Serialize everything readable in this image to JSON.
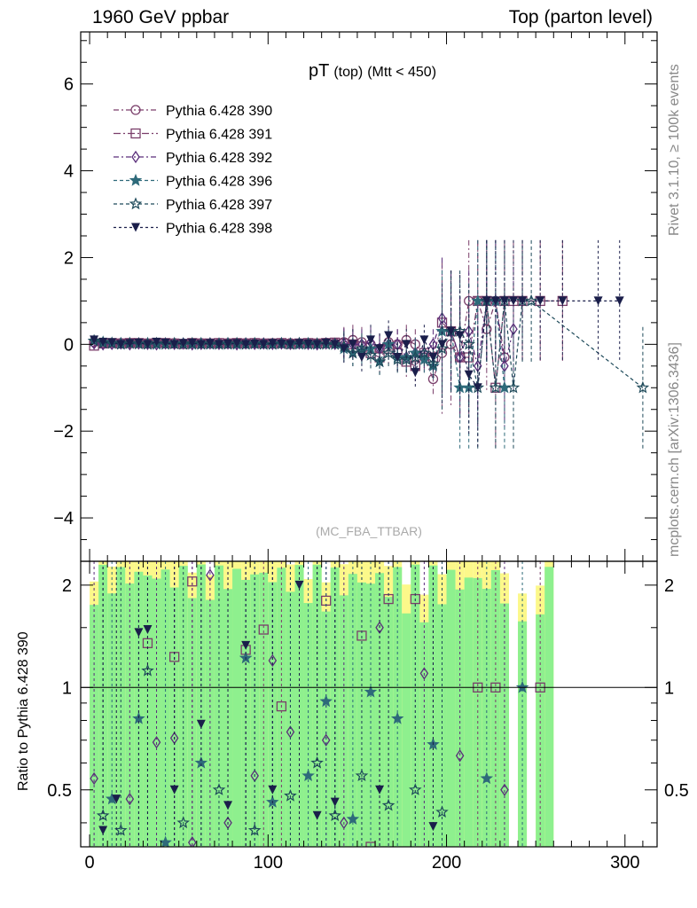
{
  "header": {
    "left": "1960 GeV ppbar",
    "right": "Top (parton level)"
  },
  "side_labels": {
    "top": "Rivet 3.1.10, ≥ 100k events",
    "bottom": "mcplots.cern.ch [arXiv:1306.3436]"
  },
  "chart_data": [
    {
      "type": "line",
      "title": "pT",
      "title_sub1": "(top)",
      "title_sub2": "(Mtt < 450)",
      "watermark": "(MC_FBA_TTBAR)",
      "xlabel": "",
      "ylabel": "",
      "xlim": [
        -5,
        318
      ],
      "ylim": [
        -5,
        7.2
      ],
      "yticks": [
        -4,
        -2,
        0,
        2,
        4,
        6
      ],
      "ytick_labels": [
        "−4",
        "−2",
        "0",
        "2",
        "4",
        "6"
      ],
      "legend_position": "top-left",
      "series": [
        {
          "name": "Pythia 6.428 390",
          "color": "#7a3e6a",
          "marker": "circle-open",
          "dash": "6,3,2,3",
          "x": [
            2.5,
            7.5,
            12.5,
            17.5,
            22.5,
            27.5,
            32.5,
            37.5,
            42.5,
            47.5,
            52.5,
            57.5,
            62.5,
            67.5,
            72.5,
            77.5,
            82.5,
            87.5,
            92.5,
            97.5,
            102.5,
            107.5,
            112.5,
            117.5,
            122.5,
            127.5,
            132.5,
            137.5,
            142.5,
            147.5,
            152.5,
            157.5,
            162.5,
            167.5,
            172.5,
            177.5,
            182.5,
            187.5,
            192.5,
            197.5,
            202.5,
            207.5,
            212.5,
            217.5,
            222.5,
            227.5,
            232.5
          ],
          "y": [
            0.05,
            0.03,
            0.02,
            0.03,
            0.02,
            0.03,
            0.02,
            0.03,
            0.02,
            0.03,
            0.02,
            0.02,
            0.03,
            0.02,
            0.02,
            0.03,
            0.02,
            0.03,
            0.02,
            0.02,
            0.03,
            0.02,
            0.03,
            0.02,
            0.03,
            0.02,
            0.04,
            0.03,
            0.05,
            0.1,
            0.05,
            0.0,
            -0.1,
            0.05,
            0.0,
            0.1,
            0.0,
            -0.3,
            -0.8,
            -0.2,
            0.0,
            -0.3,
            1.0,
            1.0,
            0.35,
            1.0,
            -0.3
          ]
        },
        {
          "name": "Pythia 6.428 391",
          "color": "#7a3e6a",
          "marker": "square-open",
          "dash": "8,3,2,3",
          "x": [
            2.5,
            7.5,
            12.5,
            17.5,
            22.5,
            27.5,
            32.5,
            37.5,
            42.5,
            47.5,
            52.5,
            57.5,
            62.5,
            67.5,
            72.5,
            77.5,
            82.5,
            87.5,
            92.5,
            97.5,
            102.5,
            107.5,
            112.5,
            117.5,
            122.5,
            127.5,
            132.5,
            137.5,
            142.5,
            147.5,
            152.5,
            157.5,
            162.5,
            167.5,
            172.5,
            177.5,
            182.5,
            187.5,
            192.5,
            197.5,
            202.5,
            207.5,
            212.5,
            217.5,
            222.5,
            227.5,
            232.5,
            237.5,
            242.5,
            252.5,
            265
          ],
          "y": [
            -0.03,
            0.02,
            0.03,
            0.02,
            0.03,
            0.03,
            0.02,
            0.03,
            0.03,
            0.02,
            0.01,
            0.03,
            0.02,
            0.02,
            0.03,
            0.02,
            0.03,
            0.02,
            0.03,
            0.02,
            0.02,
            0.03,
            0.01,
            0.02,
            0.03,
            0.02,
            0.03,
            0.04,
            0.02,
            0.0,
            -0.05,
            -0.2,
            -0.3,
            -0.1,
            -0.2,
            -0.4,
            -0.5,
            -0.2,
            -0.3,
            0.5,
            0.3,
            -0.3,
            -0.3,
            1.0,
            1.0,
            -1.0,
            1.0,
            1.0,
            1.0,
            1.0,
            1.0
          ]
        },
        {
          "name": "Pythia 6.428 392",
          "color": "#5a2e7a",
          "marker": "diamond-open",
          "dash": "6,3,2,3",
          "x": [
            2.5,
            7.5,
            12.5,
            17.5,
            22.5,
            27.5,
            32.5,
            37.5,
            42.5,
            47.5,
            52.5,
            57.5,
            62.5,
            67.5,
            72.5,
            77.5,
            82.5,
            87.5,
            92.5,
            97.5,
            102.5,
            107.5,
            112.5,
            117.5,
            122.5,
            127.5,
            132.5,
            137.5,
            142.5,
            147.5,
            152.5,
            157.5,
            162.5,
            167.5,
            172.5,
            177.5,
            182.5,
            187.5,
            192.5,
            197.5,
            202.5,
            207.5,
            212.5,
            217.5,
            222.5,
            227.5,
            232.5,
            237.5
          ],
          "y": [
            0.02,
            0.0,
            0.01,
            0.02,
            0.0,
            0.02,
            0.01,
            0.0,
            0.02,
            0.01,
            0.02,
            0.0,
            0.01,
            0.02,
            0.01,
            0.02,
            0.0,
            0.02,
            0.01,
            0.02,
            0.01,
            0.02,
            0.01,
            0.02,
            0.01,
            0.0,
            0.02,
            0.01,
            0.02,
            0.0,
            0.0,
            0.05,
            -0.1,
            0.0,
            0.0,
            -0.3,
            -0.2,
            -0.2,
            0.0,
            0.6,
            0.3,
            -0.3,
            0.3,
            -0.5,
            1.0,
            1.0,
            -0.5,
            0.35
          ]
        },
        {
          "name": "Pythia 6.428 396",
          "color": "#2e6a7a",
          "marker": "star-filled",
          "dash": "4,3",
          "x": [
            2.5,
            7.5,
            12.5,
            17.5,
            22.5,
            27.5,
            32.5,
            37.5,
            42.5,
            47.5,
            52.5,
            57.5,
            62.5,
            67.5,
            72.5,
            77.5,
            82.5,
            87.5,
            92.5,
            97.5,
            102.5,
            107.5,
            112.5,
            117.5,
            122.5,
            127.5,
            132.5,
            137.5,
            142.5,
            147.5,
            152.5,
            157.5,
            162.5,
            167.5,
            172.5,
            177.5,
            182.5,
            187.5,
            192.5,
            197.5,
            202.5,
            207.5,
            212.5,
            217.5,
            222.5,
            227.5,
            232.5
          ],
          "y": [
            0.08,
            0.05,
            0.03,
            0.02,
            0.02,
            0.01,
            0.02,
            0.0,
            0.01,
            0.02,
            0.01,
            0.0,
            0.02,
            0.0,
            0.01,
            0.02,
            0.0,
            0.01,
            0.02,
            0.0,
            0.0,
            0.02,
            0.01,
            0.0,
            0.02,
            0.0,
            0.01,
            0.0,
            -0.1,
            -0.2,
            -0.15,
            -0.1,
            -0.4,
            0.0,
            -0.3,
            -0.3,
            -0.2,
            -0.35,
            -0.5,
            0.3,
            0.3,
            -1.0,
            -1.0,
            1.0,
            1.0,
            1.0,
            -1.0
          ]
        },
        {
          "name": "Pythia 6.428 397",
          "color": "#1e4a5a",
          "marker": "star-open",
          "dash": "4,3",
          "x": [
            2.5,
            7.5,
            12.5,
            17.5,
            22.5,
            27.5,
            32.5,
            37.5,
            42.5,
            47.5,
            52.5,
            57.5,
            62.5,
            67.5,
            72.5,
            77.5,
            82.5,
            87.5,
            92.5,
            97.5,
            102.5,
            107.5,
            112.5,
            117.5,
            122.5,
            127.5,
            132.5,
            137.5,
            142.5,
            147.5,
            152.5,
            157.5,
            162.5,
            167.5,
            172.5,
            177.5,
            182.5,
            187.5,
            192.5,
            197.5,
            202.5,
            207.5,
            212.5,
            217.5,
            222.5,
            227.5,
            232.5,
            237.5,
            242.5,
            247.5,
            310
          ],
          "y": [
            0.08,
            0.03,
            0.02,
            0.0,
            0.02,
            0.01,
            0.0,
            0.02,
            0.0,
            0.01,
            0.0,
            0.02,
            0.0,
            0.01,
            0.0,
            0.0,
            0.02,
            0.0,
            0.01,
            0.0,
            0.0,
            0.01,
            0.0,
            0.02,
            0.0,
            0.01,
            0.0,
            0.0,
            -0.05,
            -0.2,
            -0.1,
            -0.25,
            -0.4,
            -0.2,
            -0.35,
            -0.35,
            -0.3,
            -0.2,
            -0.45,
            -0.1,
            0.3,
            0.3,
            0.0,
            -1.0,
            1.0,
            -1.0,
            1.0,
            -1.0,
            1.0,
            1.0,
            -1.0
          ]
        },
        {
          "name": "Pythia 6.428 398",
          "color": "#1a1e4a",
          "marker": "tri-down-filled",
          "dash": "3,3",
          "x": [
            2.5,
            7.5,
            12.5,
            17.5,
            22.5,
            27.5,
            32.5,
            37.5,
            42.5,
            47.5,
            52.5,
            57.5,
            62.5,
            67.5,
            72.5,
            77.5,
            82.5,
            87.5,
            92.5,
            97.5,
            102.5,
            107.5,
            112.5,
            117.5,
            122.5,
            127.5,
            132.5,
            137.5,
            142.5,
            147.5,
            152.5,
            157.5,
            162.5,
            167.5,
            172.5,
            177.5,
            182.5,
            187.5,
            192.5,
            197.5,
            202.5,
            207.5,
            212.5,
            217.5,
            222.5,
            227.5,
            232.5,
            237.5,
            242.5,
            252.5,
            265,
            285,
            297
          ],
          "y": [
            0.1,
            0.05,
            0.04,
            0.0,
            0.02,
            0.03,
            0.0,
            0.05,
            0.03,
            0.0,
            0.02,
            0.03,
            0.0,
            0.02,
            0.0,
            0.01,
            0.02,
            0.0,
            0.01,
            0.0,
            0.02,
            0.01,
            0.0,
            0.02,
            0.01,
            0.0,
            0.03,
            0.0,
            -0.1,
            0.0,
            -0.3,
            0.1,
            -0.1,
            0.2,
            -0.3,
            0.0,
            -0.65,
            0.1,
            -0.3,
            0.0,
            0.3,
            0.2,
            -0.7,
            -1.0,
            1.0,
            1.0,
            1.0,
            1.0,
            1.0,
            1.0,
            1.0,
            1.0,
            1.0
          ]
        }
      ]
    },
    {
      "type": "line",
      "ylabel": "Ratio to Pythia 6.428 390",
      "xlim": [
        -5,
        318
      ],
      "ylim": [
        0.34,
        2.35
      ],
      "yticks": [
        0.5,
        1,
        2
      ],
      "ytick_labels": [
        "0.5",
        "1",
        "2"
      ],
      "xticks": [
        0,
        100,
        200,
        300
      ],
      "xtick_labels": [
        "0",
        "100",
        "200",
        "300"
      ],
      "band_colors": {
        "inner": "#8ef08e",
        "outer": "#fcf88a"
      },
      "series": [
        {
          "name": "Pythia 6.428 391",
          "color": "#7a3e6a",
          "marker": "square-open",
          "x": [
            32.5,
            47.5,
            57.5,
            87.5,
            97.5,
            107.5,
            132.5,
            152.5,
            157.5,
            167.5,
            182.5,
            217.5,
            227.5,
            252.5
          ],
          "y": [
            1.35,
            1.23,
            2.05,
            1.29,
            1.48,
            0.88,
            1.8,
            1.42,
            0.34,
            1.82,
            1.82,
            1.0,
            1.0,
            1.0
          ]
        },
        {
          "name": "Pythia 6.428 392",
          "color": "#5a2e7a",
          "marker": "diamond-open",
          "x": [
            2.5,
            22.5,
            37.5,
            47.5,
            57.5,
            67.5,
            77.5,
            92.5,
            102.5,
            112.5,
            132.5,
            142.5,
            162.5,
            187.5,
            207.5,
            232.5
          ],
          "y": [
            0.54,
            0.47,
            0.69,
            0.71,
            0.35,
            2.14,
            0.4,
            0.55,
            1.2,
            0.74,
            0.7,
            0.4,
            1.5,
            1.1,
            0.63,
            0.5
          ]
        },
        {
          "name": "Pythia 6.428 396",
          "color": "#2e6a7a",
          "marker": "star-filled",
          "x": [
            12.5,
            27.5,
            42.5,
            62.5,
            87.5,
            102.5,
            122.5,
            132.5,
            147.5,
            157.5,
            172.5,
            192.5,
            222.5,
            242.5
          ],
          "y": [
            0.47,
            0.81,
            0.35,
            0.6,
            1.22,
            0.46,
            0.55,
            0.91,
            0.41,
            0.97,
            0.81,
            0.68,
            0.54,
            1.0
          ]
        },
        {
          "name": "Pythia 6.428 397",
          "color": "#1e4a5a",
          "marker": "star-open",
          "x": [
            7.5,
            17.5,
            32.5,
            52.5,
            72.5,
            92.5,
            112.5,
            127.5,
            137.5,
            152.5,
            167.5,
            182.5,
            197.5
          ],
          "y": [
            0.42,
            0.38,
            1.12,
            0.4,
            0.5,
            0.38,
            0.48,
            0.6,
            0.42,
            0.55,
            0.45,
            0.5,
            0.43
          ]
        },
        {
          "name": "Pythia 6.428 398",
          "color": "#1a1e4a",
          "marker": "tri-down-filled",
          "x": [
            7.5,
            15,
            27.5,
            32.5,
            47.5,
            62.5,
            77.5,
            87.5,
            102.5,
            117.5,
            127.5,
            137.5,
            162.5,
            192.5
          ],
          "y": [
            0.38,
            0.47,
            1.45,
            1.48,
            0.5,
            0.78,
            0.45,
            1.33,
            0.5,
            2.0,
            0.42,
            0.46,
            0.5,
            0.39
          ]
        }
      ]
    }
  ]
}
